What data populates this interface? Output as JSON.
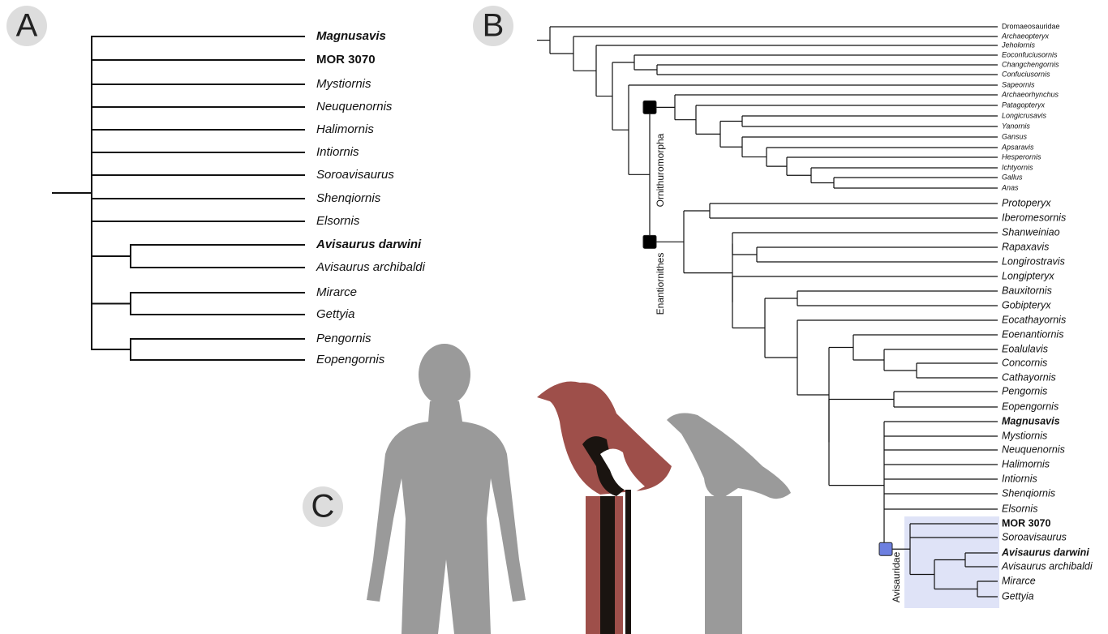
{
  "panels": {
    "a": {
      "label": "A",
      "taxa": [
        {
          "name": "Magnusavis",
          "bold": true,
          "italic": true
        },
        {
          "name": "MOR 3070",
          "bold": true,
          "italic": false
        },
        {
          "name": "Mystiornis",
          "bold": false,
          "italic": true
        },
        {
          "name": "Neuquenornis",
          "bold": false,
          "italic": true
        },
        {
          "name": "Halimornis",
          "bold": false,
          "italic": true
        },
        {
          "name": "Intiornis",
          "bold": false,
          "italic": true
        },
        {
          "name": "Soroavisaurus",
          "bold": false,
          "italic": true
        },
        {
          "name": "Shenqiornis",
          "bold": false,
          "italic": true
        },
        {
          "name": "Elsornis",
          "bold": false,
          "italic": true
        },
        {
          "name": "Avisaurus darwini",
          "bold": true,
          "italic": true
        },
        {
          "name": "Avisaurus archibaldi",
          "bold": false,
          "italic": true
        },
        {
          "name": "Mirarce",
          "bold": false,
          "italic": true
        },
        {
          "name": "Gettyia",
          "bold": false,
          "italic": true
        },
        {
          "name": "Pengornis",
          "bold": false,
          "italic": true
        },
        {
          "name": "Eopengornis",
          "bold": false,
          "italic": true
        }
      ]
    },
    "b": {
      "label": "B",
      "taxa": [
        {
          "name": "Dromaeosauridae",
          "bold": false,
          "italic": false
        },
        {
          "name": "Archaeopteryx",
          "bold": false,
          "italic": true
        },
        {
          "name": "Jeholornis",
          "bold": false,
          "italic": true
        },
        {
          "name": "Eoconfuciusornis",
          "bold": false,
          "italic": true
        },
        {
          "name": "Changchengornis",
          "bold": false,
          "italic": true
        },
        {
          "name": "Confuciusornis",
          "bold": false,
          "italic": true
        },
        {
          "name": "Sapeornis",
          "bold": false,
          "italic": true
        },
        {
          "name": "Archaeorhynchus",
          "bold": false,
          "italic": true
        },
        {
          "name": "Patagopteryx",
          "bold": false,
          "italic": true
        },
        {
          "name": "Longicrusavis",
          "bold": false,
          "italic": true
        },
        {
          "name": "Yanornis",
          "bold": false,
          "italic": true
        },
        {
          "name": "Gansus",
          "bold": false,
          "italic": true
        },
        {
          "name": "Apsaravis",
          "bold": false,
          "italic": true
        },
        {
          "name": "Hesperornis",
          "bold": false,
          "italic": true
        },
        {
          "name": "Ichtyornis",
          "bold": false,
          "italic": true
        },
        {
          "name": "Gallus",
          "bold": false,
          "italic": true
        },
        {
          "name": "Anas",
          "bold": false,
          "italic": true
        },
        {
          "name": "Protoperyx",
          "bold": false,
          "italic": true
        },
        {
          "name": "Iberomesornis",
          "bold": false,
          "italic": true
        },
        {
          "name": "Shanweiniao",
          "bold": false,
          "italic": true
        },
        {
          "name": "Rapaxavis",
          "bold": false,
          "italic": true
        },
        {
          "name": "Longirostravis",
          "bold": false,
          "italic": true
        },
        {
          "name": "Longipteryx",
          "bold": false,
          "italic": true
        },
        {
          "name": "Bauxitornis",
          "bold": false,
          "italic": true
        },
        {
          "name": "Gobipteryx",
          "bold": false,
          "italic": true
        },
        {
          "name": "Eocathayornis",
          "bold": false,
          "italic": true
        },
        {
          "name": "Eoenantiornis",
          "bold": false,
          "italic": true
        },
        {
          "name": "Eoalulavis",
          "bold": false,
          "italic": true
        },
        {
          "name": "Concornis",
          "bold": false,
          "italic": true
        },
        {
          "name": "Cathayornis",
          "bold": false,
          "italic": true
        },
        {
          "name": "Pengornis",
          "bold": false,
          "italic": true
        },
        {
          "name": "Eopengornis",
          "bold": false,
          "italic": true
        },
        {
          "name": "Magnusavis",
          "bold": true,
          "italic": true
        },
        {
          "name": "Mystiornis",
          "bold": false,
          "italic": true
        },
        {
          "name": "Neuquenornis",
          "bold": false,
          "italic": true
        },
        {
          "name": "Halimornis",
          "bold": false,
          "italic": true
        },
        {
          "name": "Intiornis",
          "bold": false,
          "italic": true
        },
        {
          "name": "Shenqiornis",
          "bold": false,
          "italic": true
        },
        {
          "name": "Elsornis",
          "bold": false,
          "italic": true
        },
        {
          "name": "MOR 3070",
          "bold": true,
          "italic": false
        },
        {
          "name": "Soroavisaurus",
          "bold": false,
          "italic": true
        },
        {
          "name": "Avisaurus darwini",
          "bold": true,
          "italic": true
        },
        {
          "name": "Avisaurus archibaldi",
          "bold": false,
          "italic": true
        },
        {
          "name": "Mirarce",
          "bold": false,
          "italic": true
        },
        {
          "name": "Gettyia",
          "bold": false,
          "italic": true
        }
      ],
      "clades": {
        "ornithuromorpha": "Ornithuromorpha",
        "enantiornithes": "Enantiornithes",
        "avisauridae": "Avisauridae"
      }
    },
    "c": {
      "label": "C"
    }
  }
}
